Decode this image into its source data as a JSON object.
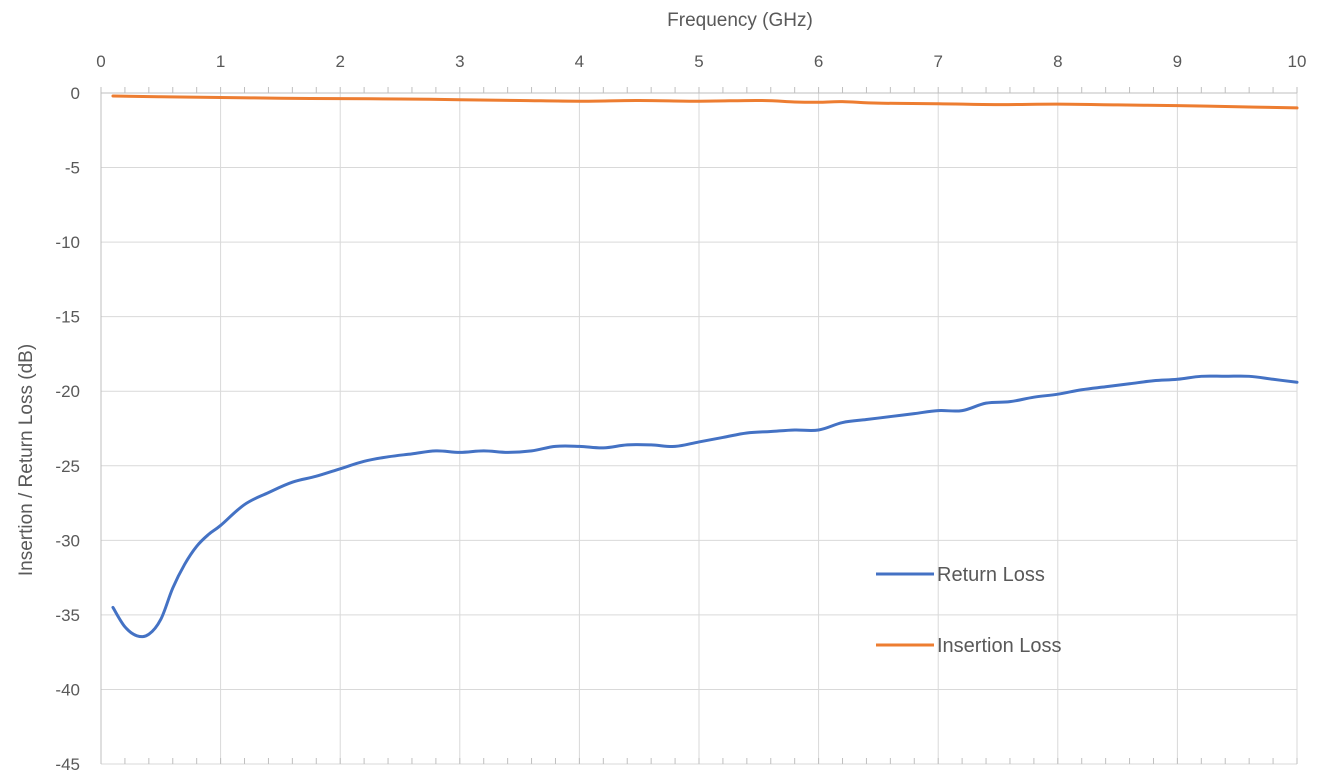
{
  "chart_data": {
    "type": "line",
    "xlabel": "Frequency (GHz)",
    "ylabel": "Insertion / Return Loss (dB)",
    "xlim": [
      0,
      10
    ],
    "ylim": [
      -45,
      0
    ],
    "x_ticks": [
      "0",
      "1",
      "2",
      "3",
      "4",
      "5",
      "6",
      "7",
      "8",
      "9",
      "10"
    ],
    "y_ticks": [
      "0",
      "-5",
      "-10",
      "-15",
      "-20",
      "-25",
      "-30",
      "-35",
      "-40",
      "-45"
    ],
    "x_axis_position": "top",
    "grid": true,
    "legend_position": "right-center",
    "series": [
      {
        "name": "Return Loss",
        "color": "#4472C4",
        "x": [
          0.1,
          0.2,
          0.3,
          0.4,
          0.5,
          0.6,
          0.7,
          0.8,
          0.9,
          1.0,
          1.2,
          1.4,
          1.6,
          1.8,
          2.0,
          2.2,
          2.4,
          2.6,
          2.8,
          3.0,
          3.2,
          3.4,
          3.6,
          3.8,
          4.0,
          4.2,
          4.4,
          4.6,
          4.8,
          5.0,
          5.2,
          5.4,
          5.6,
          5.8,
          6.0,
          6.2,
          6.4,
          6.6,
          6.8,
          7.0,
          7.2,
          7.4,
          7.6,
          7.8,
          8.0,
          8.2,
          8.4,
          8.6,
          8.8,
          9.0,
          9.2,
          9.4,
          9.6,
          9.8,
          10.0
        ],
        "values": [
          -34.5,
          -35.8,
          -36.4,
          -36.3,
          -35.3,
          -33.2,
          -31.6,
          -30.4,
          -29.6,
          -29.0,
          -27.6,
          -26.8,
          -26.1,
          -25.7,
          -25.2,
          -24.7,
          -24.4,
          -24.2,
          -24.0,
          -24.1,
          -24.0,
          -24.1,
          -24.0,
          -23.7,
          -23.7,
          -23.8,
          -23.6,
          -23.6,
          -23.7,
          -23.4,
          -23.1,
          -22.8,
          -22.7,
          -22.6,
          -22.6,
          -22.1,
          -21.9,
          -21.7,
          -21.5,
          -21.3,
          -21.3,
          -20.8,
          -20.7,
          -20.4,
          -20.2,
          -19.9,
          -19.7,
          -19.5,
          -19.3,
          -19.2,
          -19.0,
          -19.0,
          -19.0,
          -19.2,
          -19.4
        ]
      },
      {
        "name": "Insertion Loss",
        "color": "#ED7D31",
        "x": [
          0.1,
          0.5,
          1.0,
          1.5,
          2.0,
          2.5,
          3.0,
          3.5,
          4.0,
          4.5,
          5.0,
          5.5,
          5.8,
          6.0,
          6.2,
          6.5,
          7.0,
          7.5,
          8.0,
          8.5,
          9.0,
          9.5,
          10.0
        ],
        "values": [
          -0.2,
          -0.25,
          -0.3,
          -0.35,
          -0.38,
          -0.4,
          -0.45,
          -0.5,
          -0.55,
          -0.5,
          -0.55,
          -0.5,
          -0.6,
          -0.62,
          -0.58,
          -0.68,
          -0.72,
          -0.78,
          -0.75,
          -0.8,
          -0.85,
          -0.92,
          -1.0
        ]
      }
    ]
  }
}
